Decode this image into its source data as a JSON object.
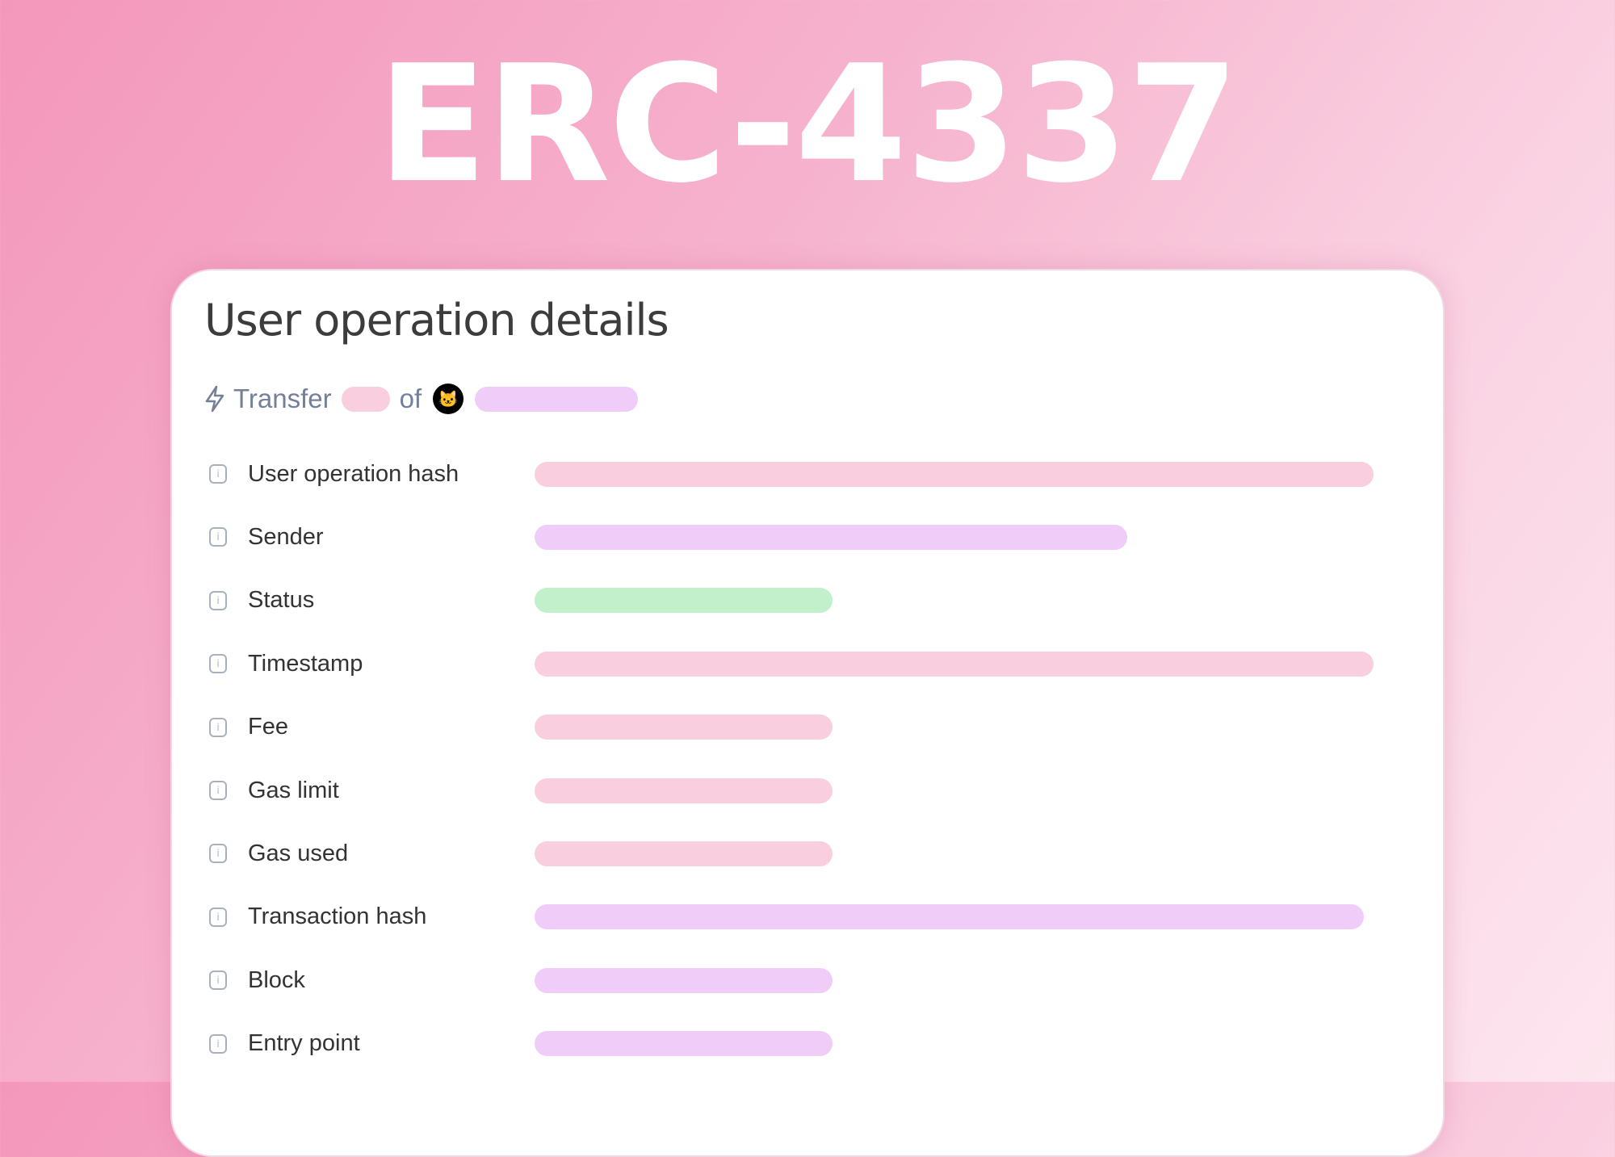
{
  "hero_title": "ERC-4337",
  "card": {
    "title": "User operation details",
    "summary": {
      "icon": "lightning-icon",
      "action": "Transfer",
      "connector": "of",
      "avatar_icon": "cat-avatar-icon"
    },
    "rows": [
      {
        "label": "User operation hash",
        "placeholder_color": "#f9cfe0"
      },
      {
        "label": "Sender",
        "placeholder_color": "#f0cdf8"
      },
      {
        "label": "Status",
        "placeholder_color": "#c2f0cb"
      },
      {
        "label": "Timestamp",
        "placeholder_color": "#f9cfe0"
      },
      {
        "label": "Fee",
        "placeholder_color": "#f9cfe0"
      },
      {
        "label": "Gas limit",
        "placeholder_color": "#f9cfe0"
      },
      {
        "label": "Gas used",
        "placeholder_color": "#f9cfe0"
      },
      {
        "label": "Transaction hash",
        "placeholder_color": "#f0cdf8"
      },
      {
        "label": "Block",
        "placeholder_color": "#f0cdf8"
      },
      {
        "label": "Entry point",
        "placeholder_color": "#f0cdf8"
      }
    ]
  },
  "colors": {
    "pink": "#f9cfe0",
    "purple": "#f0cdf8",
    "green": "#c2f0cb"
  }
}
